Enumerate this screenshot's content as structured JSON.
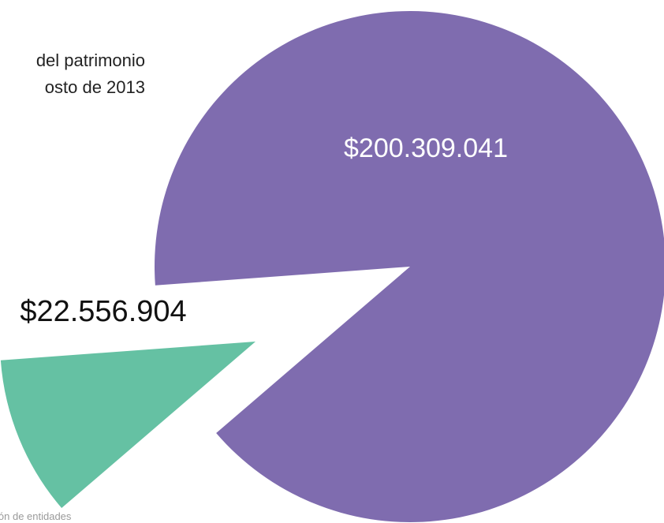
{
  "chart_data": {
    "type": "pie",
    "title_lines": [
      "del patrimonio",
      "osto de 2013"
    ],
    "slices": [
      {
        "label": "$200.309.041",
        "value": 200309041,
        "color": "#7f6caf",
        "label_color": "#ffffff"
      },
      {
        "label": "$22.556.904",
        "value": 22556904,
        "color": "#65c1a3",
        "label_color": "#111111"
      }
    ],
    "exploded_slice": 1,
    "legend": "none",
    "footnote": "ión de entidades"
  }
}
